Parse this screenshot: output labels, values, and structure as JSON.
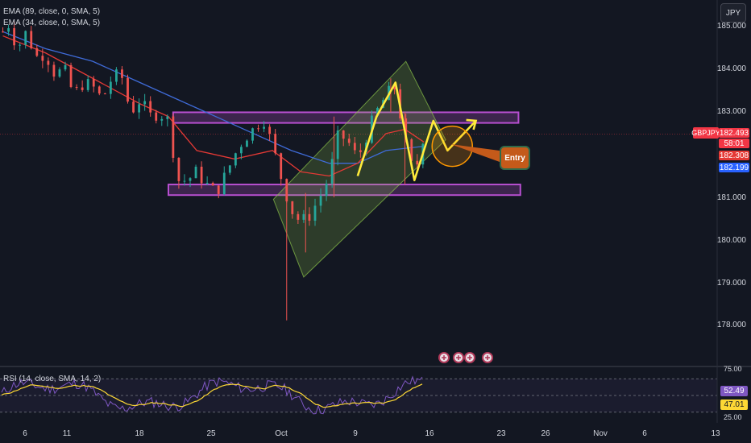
{
  "header": {
    "indicators": [
      "EMA (89, close, 0, SMA, 5)",
      "EMA (34, close, 0, SMA, 5)"
    ],
    "currency": "JPY",
    "symbol": "GBPJPY"
  },
  "price_labels": {
    "current": "182.493",
    "countdown": "58:01",
    "ema34": "182.308",
    "ema89": "182.199"
  },
  "annotation": {
    "entry": "Entry"
  },
  "rsi": {
    "label": "RSI (14, close, SMA, 14, 2)",
    "rsi_value": "52.49",
    "sma_value": "47.01",
    "ticks": [
      "75.00",
      "25.00"
    ]
  },
  "colors": {
    "background": "#131722",
    "up": "#26a69a",
    "down": "#ef5350",
    "ema34": "#e53935",
    "ema89": "#3f6bd8",
    "zone": "#b74fd0",
    "channel": "#8bc34a",
    "zigzag": "#ffeb3b",
    "rsi": "#7e57c2",
    "rsi_ma": "#fdd835"
  },
  "chart_data": {
    "type": "candlestick",
    "symbol": "GBPJPY",
    "ylim": [
      177.4,
      185.4
    ],
    "yticks": [
      185,
      184,
      183,
      182,
      181,
      180,
      179,
      178
    ],
    "ytick_labels": [
      "185.000",
      "184.000",
      "183.000",
      "182.000",
      "181.000",
      "180.000",
      "179.000",
      "178.000"
    ],
    "xticks": [
      "6",
      "11",
      "18",
      "25",
      "Oct",
      "9",
      "16",
      "23",
      "26",
      "Nov",
      "6",
      "13"
    ],
    "x_ticks_pos": [
      6,
      11,
      18,
      25,
      32,
      40,
      47,
      54,
      57,
      64,
      71,
      78
    ],
    "x_range": [
      3.2,
      79
    ],
    "close_path": [
      [
        3.5,
        184.9
      ],
      [
        4.2,
        185.1
      ],
      [
        5,
        184.5
      ],
      [
        6,
        184.9
      ],
      [
        7,
        184.3
      ],
      [
        8,
        184.4
      ],
      [
        9,
        183.9
      ],
      [
        10,
        184.0
      ],
      [
        11,
        183.4
      ],
      [
        12,
        183.7
      ],
      [
        13,
        183.6
      ],
      [
        14,
        183.3
      ],
      [
        15,
        183.8
      ],
      [
        16,
        183.9
      ],
      [
        17,
        183.0
      ],
      [
        18,
        183.3
      ],
      [
        19,
        182.9
      ],
      [
        20,
        183.0
      ],
      [
        21,
        182.8
      ],
      [
        22,
        181.4
      ],
      [
        23,
        181.4
      ],
      [
        24,
        181.6
      ],
      [
        25,
        181.3
      ],
      [
        26,
        181.1
      ],
      [
        27,
        181.5
      ],
      [
        28,
        182.0
      ],
      [
        29,
        182.4
      ],
      [
        30,
        182.6
      ],
      [
        31,
        182.9
      ],
      [
        32,
        182.2
      ],
      [
        33,
        181.4
      ],
      [
        34,
        180.7
      ],
      [
        35,
        180.4
      ],
      [
        36,
        180.6
      ],
      [
        37,
        181.0
      ],
      [
        38,
        181.5
      ],
      [
        39,
        182.5
      ],
      [
        40,
        182.3
      ],
      [
        41,
        181.9
      ],
      [
        42,
        182.5
      ],
      [
        43,
        183.0
      ],
      [
        44,
        183.4
      ],
      [
        45,
        183.6
      ],
      [
        46,
        182.3
      ],
      [
        47,
        181.5
      ],
      [
        48,
        182.5
      ]
    ],
    "candle_wicks": [
      [
        33.5,
        178.1,
        181.3
      ],
      [
        35.5,
        179.7,
        181.1
      ],
      [
        38.5,
        181.0,
        182.9
      ],
      [
        44.5,
        183.0,
        183.8
      ],
      [
        46,
        181.3,
        183.0
      ]
    ],
    "ema34": [
      [
        3.5,
        184.8
      ],
      [
        8,
        184.4
      ],
      [
        13,
        183.8
      ],
      [
        18,
        183.2
      ],
      [
        21,
        182.9
      ],
      [
        24,
        182.1
      ],
      [
        28,
        181.9
      ],
      [
        32,
        182.1
      ],
      [
        35,
        181.6
      ],
      [
        38,
        181.5
      ],
      [
        41,
        181.8
      ],
      [
        44,
        182.5
      ],
      [
        46,
        182.6
      ],
      [
        48,
        182.3
      ]
    ],
    "ema89": [
      [
        3.5,
        184.9
      ],
      [
        8,
        184.5
      ],
      [
        13,
        184.2
      ],
      [
        18,
        183.7
      ],
      [
        22,
        183.3
      ],
      [
        26,
        182.9
      ],
      [
        30,
        182.5
      ],
      [
        34,
        182.1
      ],
      [
        38,
        181.8
      ],
      [
        41,
        181.8
      ],
      [
        44,
        182.1
      ],
      [
        48,
        182.2
      ]
    ],
    "resistance_zone": [
      [
        21.5,
        182.75
      ],
      [
        58,
        183.0
      ]
    ],
    "support_zone": [
      [
        21,
        181.05
      ],
      [
        58.2,
        181.3
      ]
    ],
    "channel": [
      [
        32.1,
        180.95
      ],
      [
        35.3,
        179.12
      ],
      [
        50.3,
        182.35
      ],
      [
        46.1,
        184.2
      ]
    ],
    "zigzag": [
      [
        41,
        181.5
      ],
      [
        43,
        182.9
      ],
      [
        45,
        183.7
      ],
      [
        47,
        181.4
      ],
      [
        49,
        182.8
      ],
      [
        50.5,
        182.1
      ],
      [
        53.5,
        182.8
      ]
    ],
    "target_circle": [
      51,
      182.2
    ],
    "rsi_ylim": [
      15,
      85
    ],
    "rsi_levels": [
      75,
      50,
      25
    ]
  }
}
